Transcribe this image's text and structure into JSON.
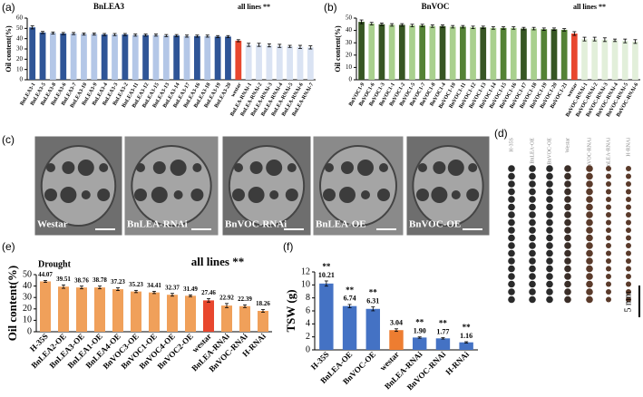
{
  "panels": [
    "(a)",
    "(b)",
    "(c)",
    "(d)",
    "(e)",
    "(f)"
  ],
  "micrographs": {
    "labels": [
      "Westar",
      "BnLEA-RNAi",
      "BnVOC-RNAi",
      "BnLEA-OE",
      "BnVOC-OE"
    ]
  },
  "seeds": {
    "labels": [
      "H-35S",
      "BnLEA-OE",
      "BnVOC-OE",
      "Westar",
      "BnVOC-RNAi",
      "BnLEA-RNAi",
      "H-RNAi"
    ],
    "scale_bar": "5 mm"
  },
  "chart_data": [
    {
      "type": "bar",
      "title": "BnLEA3",
      "annotation": "all lines **",
      "ylabel": "Oil content(%)",
      "categories": [
        "BnLEA3-1",
        "BnLEA3-5",
        "BnLEA3-8",
        "BnLEA3-6",
        "BnLEA3-7",
        "BnLEA3-10",
        "BnLEA3-9",
        "BnLEA3-4",
        "BnLEA3-3",
        "BnLEA3-2",
        "BnLEA3-11",
        "BnLEA3-12",
        "BnLEA3-15",
        "BnLEA3-13",
        "BnLEA3-14",
        "BnLEA3-17",
        "BnLEA3-16",
        "BnLEA3-18",
        "BnLEA3-19",
        "BnLEA3-20",
        "westar",
        "BnLEA-RNAi-1",
        "BnLEA-RNAi-2",
        "BnLEA-RNAi-3",
        "BnLEA-RNAi-4",
        "BnLEA-RNAi-5",
        "BnLEA-RNAi-6",
        "BnLEA-RNAi-7"
      ],
      "values": [
        51,
        46,
        45.5,
        45,
        45,
        44.5,
        44.5,
        44,
        44,
        44,
        43.5,
        43.5,
        43.5,
        43,
        43,
        42.5,
        42.5,
        42.5,
        42,
        42,
        38,
        34,
        34,
        33.5,
        33,
        32.5,
        32,
        31.5
      ],
      "errors": [
        1.5,
        1,
        1,
        1,
        1,
        1,
        1,
        1,
        1,
        1,
        1,
        1,
        1,
        1,
        1,
        1,
        1,
        1,
        1,
        1,
        1,
        1.5,
        1.5,
        1.5,
        1.5,
        1,
        1.5,
        1.5
      ],
      "colors": [
        "#2f5597",
        "#2f5597",
        "#b4c7e7",
        "#2f5597",
        "#b4c7e7",
        "#b4c7e7",
        "#b4c7e7",
        "#2f5597",
        "#b4c7e7",
        "#2f5597",
        "#b4c7e7",
        "#2f5597",
        "#b4c7e7",
        "#b4c7e7",
        "#2f5597",
        "#b4c7e7",
        "#2f5597",
        "#b4c7e7",
        "#2f5597",
        "#2f5597",
        "#e8472e",
        "#dae3f3",
        "#dae3f3",
        "#dae3f3",
        "#dae3f3",
        "#dae3f3",
        "#dae3f3",
        "#dae3f3"
      ],
      "ylim": [
        0,
        60
      ],
      "yticks": [
        0,
        10,
        20,
        30,
        40,
        50,
        60
      ]
    },
    {
      "type": "bar",
      "title": "BnVOC",
      "annotation": "all lines **",
      "ylabel": "Oil content(%)",
      "categories": [
        "BnVOC1-9",
        "BnVOC1-6",
        "BnVOC1-3",
        "BnVOC1-1",
        "BnVOC1-2",
        "BnVOC1-5",
        "BnVOC1-7",
        "BnVOC1-8",
        "BnVOC1-4",
        "BnVOC1-10",
        "BnVOC1-11",
        "BnVOC1-12",
        "BnVOC1-13",
        "BnVOC1-14",
        "BnVOC1-15",
        "BnVOC1-16",
        "BnVOC1-17",
        "BnVOC1-18",
        "BnVOC1-19",
        "BnVOC1-20",
        "BnVOC1-21",
        "westar",
        "BnVOC-RNAi-1",
        "BnVOC-RNAi-2",
        "BnVOC-RNAi-3",
        "BnVOC-RNAi-4",
        "BnVOC-RNAi-5",
        "BnVOC-RNAi-6"
      ],
      "values": [
        47,
        45.5,
        45,
        44.5,
        44.5,
        44,
        44,
        43.5,
        43.5,
        43,
        43,
        42.5,
        42.5,
        42,
        42,
        42,
        41.5,
        41.5,
        41,
        41,
        40.5,
        37.5,
        33,
        33,
        32.5,
        32,
        31.5,
        31
      ],
      "errors": [
        1.5,
        1,
        1,
        1,
        1,
        1,
        1,
        1,
        1,
        1,
        1,
        1,
        1,
        1,
        1,
        1,
        1,
        1,
        1,
        1,
        1,
        1.5,
        1.5,
        1.5,
        1.5,
        1,
        1.5,
        1.5
      ],
      "colors": [
        "#375623",
        "#a9d08e",
        "#375623",
        "#a9d08e",
        "#375623",
        "#a9d08e",
        "#548235",
        "#a9d08e",
        "#375623",
        "#a9d08e",
        "#548235",
        "#a9d08e",
        "#375623",
        "#a9d08e",
        "#548235",
        "#a9d08e",
        "#375623",
        "#a9d08e",
        "#548235",
        "#375623",
        "#548235",
        "#e8472e",
        "#e2efda",
        "#e2efda",
        "#e2efda",
        "#e2efda",
        "#e2efda",
        "#e2efda"
      ],
      "ylim": [
        0,
        50
      ],
      "yticks": [
        0,
        10,
        20,
        30,
        40,
        50
      ]
    },
    {
      "type": "bar",
      "title": "Drought",
      "annotation": "all lines **",
      "ylabel": "Oil content(%)",
      "categories": [
        "H-35S",
        "BnLEA2-OE",
        "BnLEA3-OE",
        "BnLEA1-OE",
        "BnLEA4-OE",
        "BnVOC3-OE",
        "BnVOC1-OE",
        "BnVOC4-OE",
        "BnVOC2-OE",
        "westar",
        "BnLEA-RNAi",
        "BnVOC-RNAi",
        "H-RNAi"
      ],
      "values": [
        44.07,
        39.51,
        38.76,
        38.78,
        37.23,
        35.23,
        34.41,
        32.37,
        31.49,
        27.46,
        22.92,
        22.39,
        18.26
      ],
      "errors": [
        0.8,
        1.5,
        1.2,
        1.2,
        1.2,
        1,
        1,
        1.2,
        0.8,
        1.5,
        1.8,
        1.2,
        1.2
      ],
      "colors": [
        "#f0a05a",
        "#f0a05a",
        "#f0a05a",
        "#f0a05a",
        "#f0a05a",
        "#f0a05a",
        "#f0a05a",
        "#f0a05a",
        "#f0a05a",
        "#e8472e",
        "#f0a05a",
        "#f0a05a",
        "#f0a05a"
      ],
      "ylim": [
        0,
        50
      ],
      "yticks": [
        0,
        10,
        20,
        30,
        40,
        50
      ]
    },
    {
      "type": "bar",
      "ylabel": "TSW (g)",
      "categories": [
        "H-35S",
        "BnLEA-OE",
        "BnVOC-OE",
        "westar",
        "BnLEA-RNAi",
        "BnVOC-RNAi",
        "H-RNAi"
      ],
      "values": [
        10.21,
        6.74,
        6.31,
        3.04,
        1.9,
        1.77,
        1.16
      ],
      "value_labels": [
        "10.21",
        "6.74",
        "6.31",
        "3.04",
        "1.90",
        "1.77",
        "1.16"
      ],
      "errors": [
        0.4,
        0.25,
        0.3,
        0.2,
        0.1,
        0.1,
        0.1
      ],
      "significance": [
        "**",
        "**",
        "**",
        null,
        "**",
        "**",
        "**"
      ],
      "colors": [
        "#4472c4",
        "#4472c4",
        "#4472c4",
        "#ed7d31",
        "#4472c4",
        "#4472c4",
        "#4472c4"
      ],
      "ylim": [
        0,
        12
      ],
      "yticks": [
        0,
        2,
        4,
        6,
        8,
        10,
        12
      ]
    }
  ]
}
